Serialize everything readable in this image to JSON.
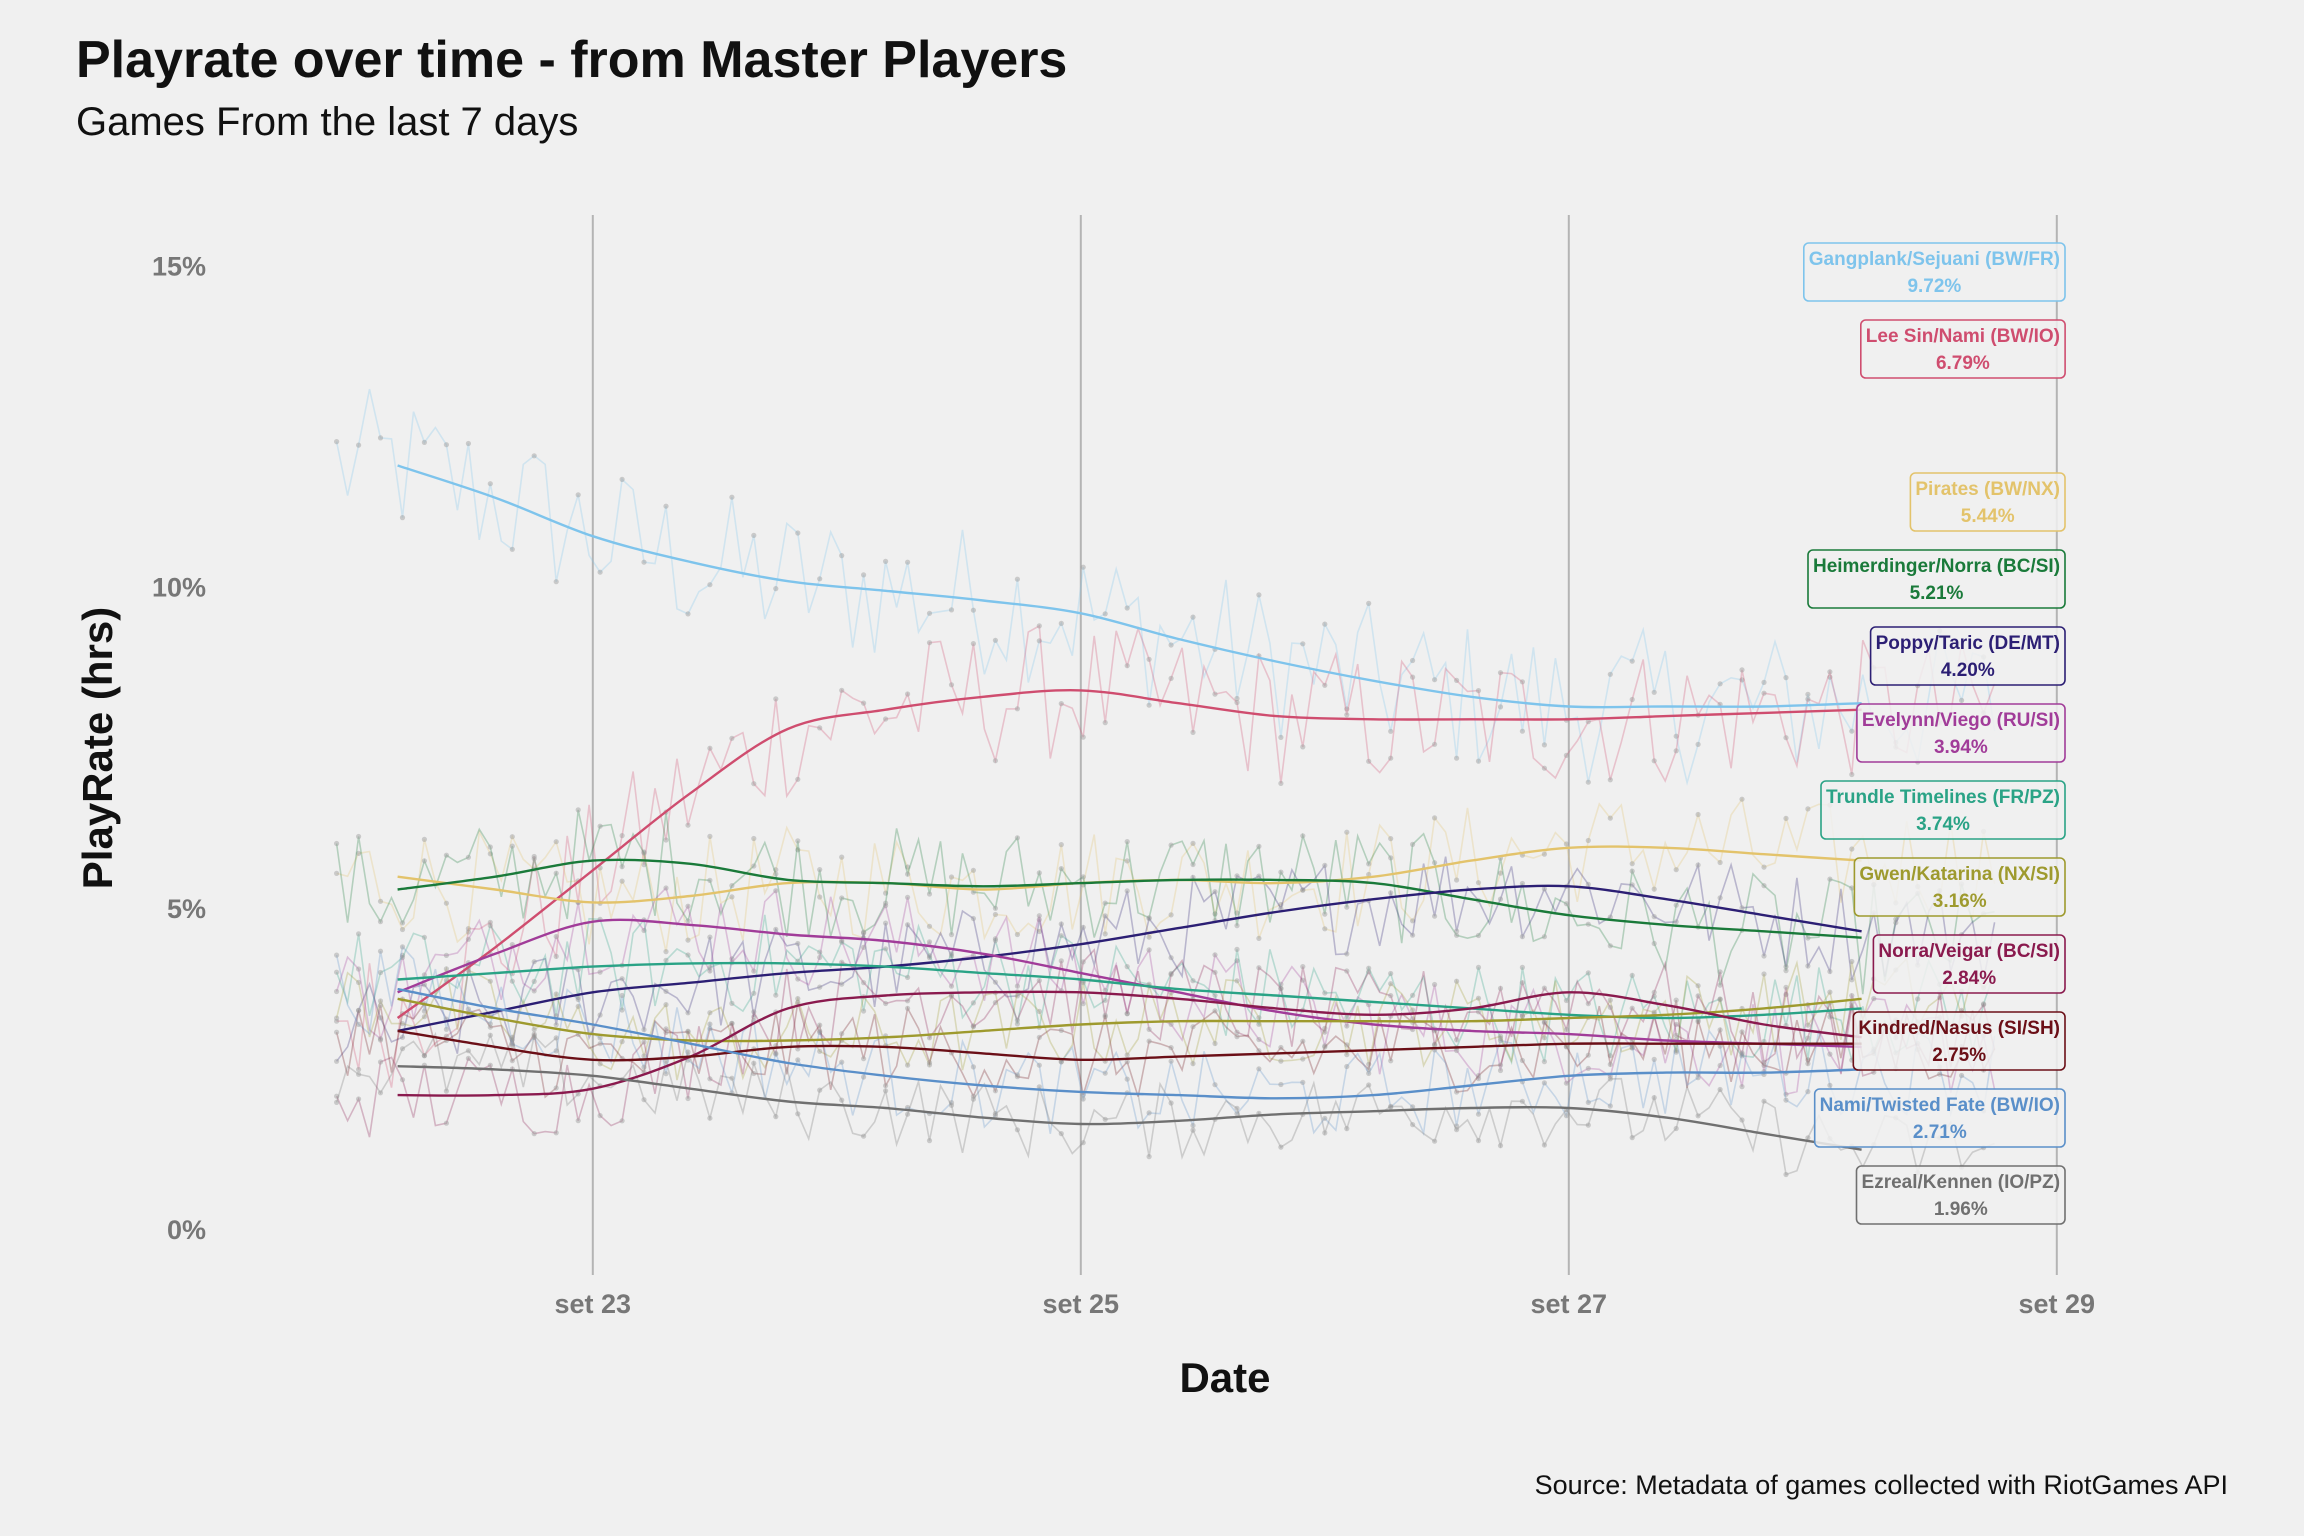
{
  "chart_data": {
    "type": "line",
    "title": "Playrate over time - from Master Players",
    "subtitle": "Games From the last 7 days",
    "xlabel": "Date",
    "ylabel": "PlayRate (hrs)",
    "caption": "Source: Metadata of games collected with RiotGames API",
    "x_ticks": [
      "set 23",
      "set 25",
      "set 27",
      "set 29"
    ],
    "x_tick_values": [
      23,
      25,
      27,
      29
    ],
    "x_range": [
      21.8,
      29.3
    ],
    "y_ticks": [
      "0%",
      "5%",
      "10%",
      "15%"
    ],
    "y_tick_values": [
      0,
      5,
      10,
      15
    ],
    "y_range": [
      -0.7,
      15.8
    ],
    "grid": "vertical major lines only",
    "legend": "direct labels at right edge of plot",
    "smooth_x": [
      22.2,
      22.6,
      23.0,
      23.4,
      23.8,
      24.2,
      24.6,
      25.0,
      25.4,
      25.8,
      26.2,
      26.6,
      27.0,
      27.4,
      27.8,
      28.2
    ],
    "series": [
      {
        "name": "Gangplank/Sejuani (BW/FR)",
        "label_value": "9.72%",
        "color": "#7ec4ec",
        "smooth": [
          11.9,
          11.4,
          10.8,
          10.4,
          10.1,
          9.95,
          9.8,
          9.6,
          9.2,
          8.85,
          8.55,
          8.3,
          8.15,
          8.15,
          8.15,
          8.2
        ],
        "raw_amp": 1.2
      },
      {
        "name": "Lee Sin/Nami (BW/IO)",
        "label_value": "6.79%",
        "color": "#cf4d6f",
        "smooth": [
          3.3,
          4.4,
          5.6,
          6.8,
          7.8,
          8.1,
          8.3,
          8.4,
          8.2,
          8.0,
          7.95,
          7.95,
          7.95,
          8.0,
          8.05,
          8.1
        ],
        "raw_amp": 1.1
      },
      {
        "name": "Pirates (BW/NX)",
        "label_value": "5.44%",
        "color": "#e3c36b",
        "smooth": [
          5.5,
          5.3,
          5.1,
          5.2,
          5.4,
          5.4,
          5.3,
          5.4,
          5.45,
          5.4,
          5.5,
          5.75,
          5.95,
          5.95,
          5.85,
          5.75
        ],
        "raw_amp": 0.9
      },
      {
        "name": "Heimerdinger/Norra (BC/SI)",
        "label_value": "5.21%",
        "color": "#1a7a3a",
        "smooth": [
          5.3,
          5.5,
          5.75,
          5.7,
          5.45,
          5.4,
          5.35,
          5.4,
          5.45,
          5.45,
          5.4,
          5.15,
          4.9,
          4.75,
          4.65,
          4.55
        ],
        "raw_amp": 0.9
      },
      {
        "name": "Poppy/Taric (DE/MT)",
        "label_value": "4.20%",
        "color": "#2c1f74",
        "smooth": [
          3.1,
          3.4,
          3.7,
          3.85,
          4.0,
          4.1,
          4.25,
          4.45,
          4.7,
          4.95,
          5.15,
          5.3,
          5.35,
          5.15,
          4.9,
          4.65
        ],
        "raw_amp": 0.8
      },
      {
        "name": "Evelynn/Viego (RU/SI)",
        "label_value": "3.94%",
        "color": "#a13c99",
        "smooth": [
          3.7,
          4.3,
          4.8,
          4.75,
          4.6,
          4.5,
          4.3,
          4.0,
          3.7,
          3.4,
          3.2,
          3.1,
          3.05,
          2.95,
          2.9,
          2.85
        ],
        "raw_amp": 0.8
      },
      {
        "name": "Trundle Timelines (FR/PZ)",
        "label_value": "3.74%",
        "color": "#2aa386",
        "smooth": [
          3.9,
          4.0,
          4.1,
          4.15,
          4.15,
          4.1,
          4.0,
          3.9,
          3.75,
          3.65,
          3.55,
          3.45,
          3.35,
          3.3,
          3.35,
          3.45
        ],
        "raw_amp": 0.8
      },
      {
        "name": "Gwen/Katarina (NX/SI)",
        "label_value": "3.16%",
        "color": "#9e9a2e",
        "smooth": [
          3.6,
          3.3,
          3.05,
          2.95,
          2.95,
          3.0,
          3.1,
          3.2,
          3.25,
          3.25,
          3.25,
          3.25,
          3.3,
          3.35,
          3.45,
          3.6
        ],
        "raw_amp": 0.7
      },
      {
        "name": "Norra/Veigar (BC/SI)",
        "label_value": "2.84%",
        "color": "#8a1a4e",
        "smooth": [
          2.1,
          2.1,
          2.2,
          2.7,
          3.45,
          3.65,
          3.7,
          3.7,
          3.6,
          3.45,
          3.35,
          3.45,
          3.7,
          3.5,
          3.2,
          3.0
        ],
        "raw_amp": 0.7
      },
      {
        "name": "Kindred/Nasus (SI/SH)",
        "label_value": "2.75%",
        "color": "#6b0f17",
        "smooth": [
          3.1,
          2.85,
          2.65,
          2.7,
          2.85,
          2.85,
          2.75,
          2.65,
          2.7,
          2.75,
          2.8,
          2.85,
          2.9,
          2.9,
          2.9,
          2.9
        ],
        "raw_amp": 0.7
      },
      {
        "name": "Nami/Twisted Fate (BW/IO)",
        "label_value": "2.71%",
        "color": "#5a8fc9",
        "smooth": [
          3.75,
          3.45,
          3.2,
          2.9,
          2.6,
          2.4,
          2.25,
          2.15,
          2.1,
          2.05,
          2.1,
          2.25,
          2.4,
          2.45,
          2.45,
          2.5
        ],
        "raw_amp": 0.7
      },
      {
        "name": "Ezreal/Kennen (IO/PZ)",
        "label_value": "1.96%",
        "color": "#707070",
        "smooth": [
          2.55,
          2.5,
          2.4,
          2.2,
          2.0,
          1.9,
          1.75,
          1.65,
          1.7,
          1.8,
          1.85,
          1.9,
          1.9,
          1.75,
          1.5,
          1.25
        ],
        "raw_amp": 0.6
      }
    ]
  }
}
